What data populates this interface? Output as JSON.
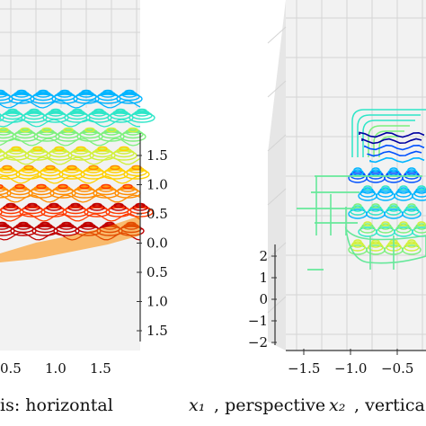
{
  "caption": {
    "left_fragment": "is: horizontal ",
    "x1": "x₁",
    "sep": ", perspective ",
    "x2": "x₂",
    "right_fragment": ", vertica"
  },
  "chart_data": [
    {
      "type": "3d-contour",
      "panel": "left",
      "title": "",
      "zticks": [
        "1.5",
        "1.0",
        "0.5",
        "0.0",
        "0.5",
        "1.0",
        "1.5"
      ],
      "xticks": [
        "0.5",
        "1.0",
        "1.5"
      ],
      "colormap": "jet",
      "grid": true
    },
    {
      "type": "3d-contour",
      "panel": "right",
      "title": "",
      "zticks": [
        "2",
        "1",
        "0",
        "−1",
        "−2"
      ],
      "xticks": [
        "−1.5",
        "−1.0",
        "−0.5"
      ],
      "colormap": "jet",
      "grid": true
    }
  ],
  "colors": {
    "pane": "#ececec",
    "grid": "#cfcfcf",
    "jet": [
      "#0000a0",
      "#0050ff",
      "#00b4ff",
      "#2ee6c8",
      "#7cf07c",
      "#d2f03a",
      "#ffd000",
      "#ff8c00",
      "#ff3a00",
      "#c00000"
    ]
  }
}
